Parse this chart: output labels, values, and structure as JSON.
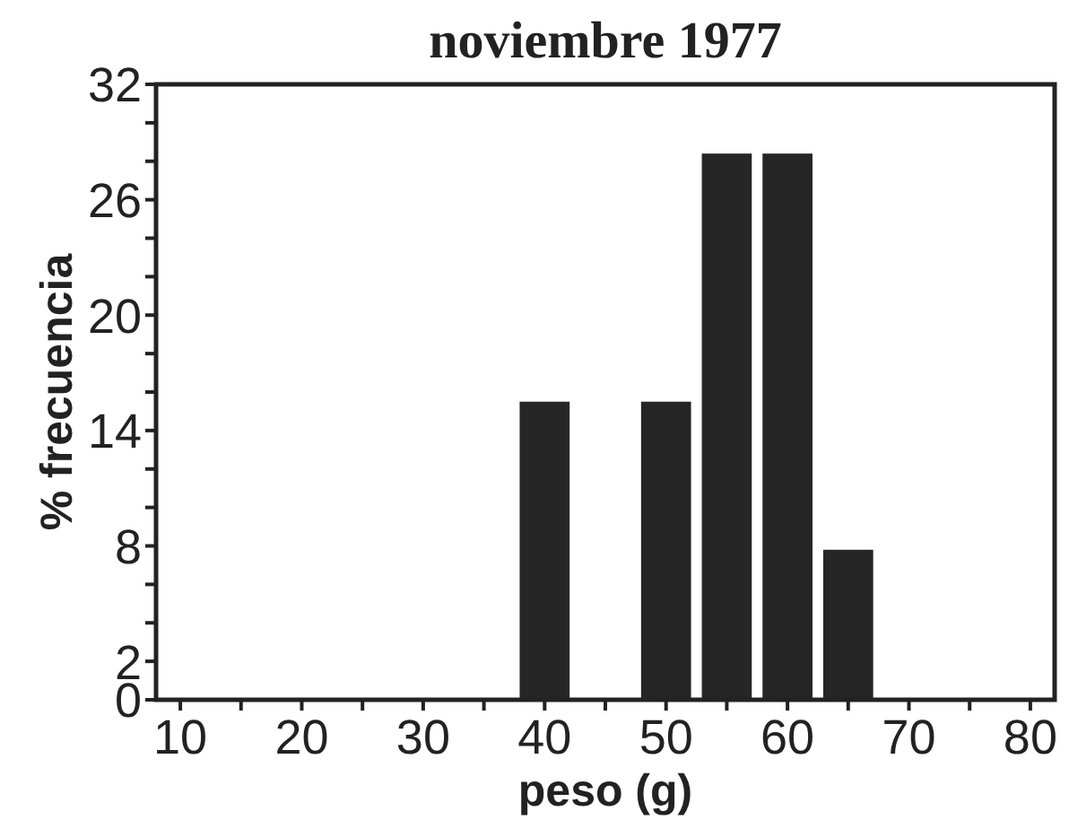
{
  "chart_data": {
    "type": "histogram",
    "title": "noviembre 1977",
    "xlabel": "peso (g)",
    "ylabel": "% frecuencia",
    "bins": [
      37.5,
      42.5,
      47.5,
      52.5,
      57.5,
      62.5,
      67.5
    ],
    "values": [
      15.5,
      0,
      15.5,
      28.4,
      28.4,
      7.8
    ],
    "color": "#262626",
    "xlim": [
      8,
      82
    ],
    "xticks": [
      10,
      {
        "value": 15,
        "label": null
      },
      20,
      {
        "value": 25,
        "label": null
      },
      30,
      {
        "value": 35,
        "label": null
      },
      40,
      {
        "value": 45,
        "label": null
      },
      50,
      {
        "value": 55,
        "label": null
      },
      60,
      {
        "value": 65,
        "label": null
      },
      70,
      {
        "value": 75,
        "label": null
      },
      80
    ],
    "ylim": [
      0,
      32
    ],
    "yticks": [
      0,
      2,
      {
        "value": 4,
        "label": null
      },
      {
        "value": 6,
        "label": null
      },
      8,
      {
        "value": 10,
        "label": null
      },
      {
        "value": 12,
        "label": null
      },
      14,
      {
        "value": 16,
        "label": null
      },
      {
        "value": 18,
        "label": null
      },
      20,
      {
        "value": 22,
        "label": null
      },
      {
        "value": 24,
        "label": null
      },
      26,
      {
        "value": 28,
        "label": null
      },
      {
        "value": 30,
        "label": null
      },
      32
    ],
    "grid": false
  }
}
